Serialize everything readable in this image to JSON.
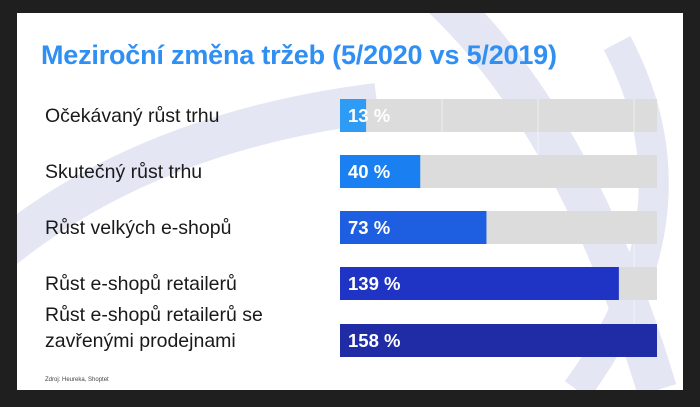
{
  "slide": {
    "title": "Meziroční změna tržeb (5/2020 vs 5/2019)",
    "source": "Zdroj: Heureka, Shoptet"
  },
  "colors": {
    "background": "#1f1f1f",
    "slide": "#ffffff",
    "title": "#2f8ff2",
    "track": "#dcdcdc",
    "decoration": "#e4e6f3"
  },
  "chart_data": {
    "type": "bar",
    "orientation": "horizontal",
    "title": "Meziroční změna tržeb (5/2020 vs 5/2019)",
    "xlabel": "",
    "ylabel": "",
    "xlim": [
      0,
      158
    ],
    "grid": false,
    "legend": "none",
    "categories": [
      "Očekávaný růst trhu",
      "Skutečný růst trhu",
      "Růst velkých e-shopů",
      "Růst e-shopů retailerů",
      "Růst e-shopů retailerů se zavřenými prodejnami"
    ],
    "values": [
      13,
      40,
      73,
      139,
      158
    ],
    "value_labels": [
      "13 %",
      "40 %",
      "73 %",
      "139 %",
      "158 %"
    ],
    "bar_colors": [
      "#2e9bf5",
      "#1a7ff0",
      "#1d5fe0",
      "#1f34c4",
      "#1f2ca6"
    ]
  }
}
